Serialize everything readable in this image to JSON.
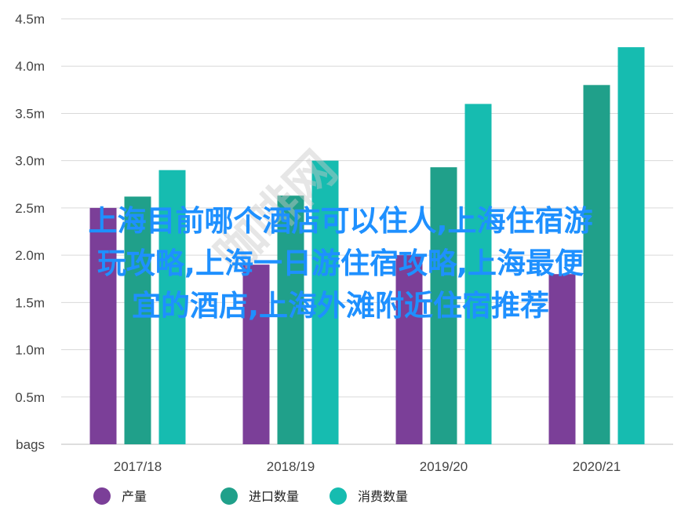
{
  "chart_data": {
    "type": "bar",
    "title": "",
    "xlabel": "",
    "ylabel": "",
    "categories": [
      "2017/18",
      "2018/19",
      "2019/20",
      "2020/21"
    ],
    "y_ticks": [
      "bags",
      "0.5m",
      "1.0m",
      "1.5m",
      "2.0m",
      "2.5m",
      "3.0m",
      "3.5m",
      "4.0m",
      "4.5m"
    ],
    "ylim": [
      0,
      4.5
    ],
    "grid": true,
    "legend_position": "bottom",
    "series": [
      {
        "name": "产量",
        "color": "#7b3f98",
        "values": [
          2.5,
          1.9,
          2.0,
          1.8
        ]
      },
      {
        "name": "进口数量",
        "color": "#20a08a",
        "values": [
          2.62,
          2.63,
          2.93,
          3.8
        ]
      },
      {
        "name": "消费数量",
        "color": "#16bcb0",
        "values": [
          2.9,
          3.0,
          3.6,
          4.2
        ]
      }
    ]
  },
  "overlay_text": {
    "line1": "上海目前哪个酒店可以住人,上海住宿游",
    "line2": "玩攻略,上海一日游住宿攻略,上海最便",
    "line3": "宜的酒店,上海外滩附近住宿推荐"
  },
  "watermark_text": "咖啡网"
}
